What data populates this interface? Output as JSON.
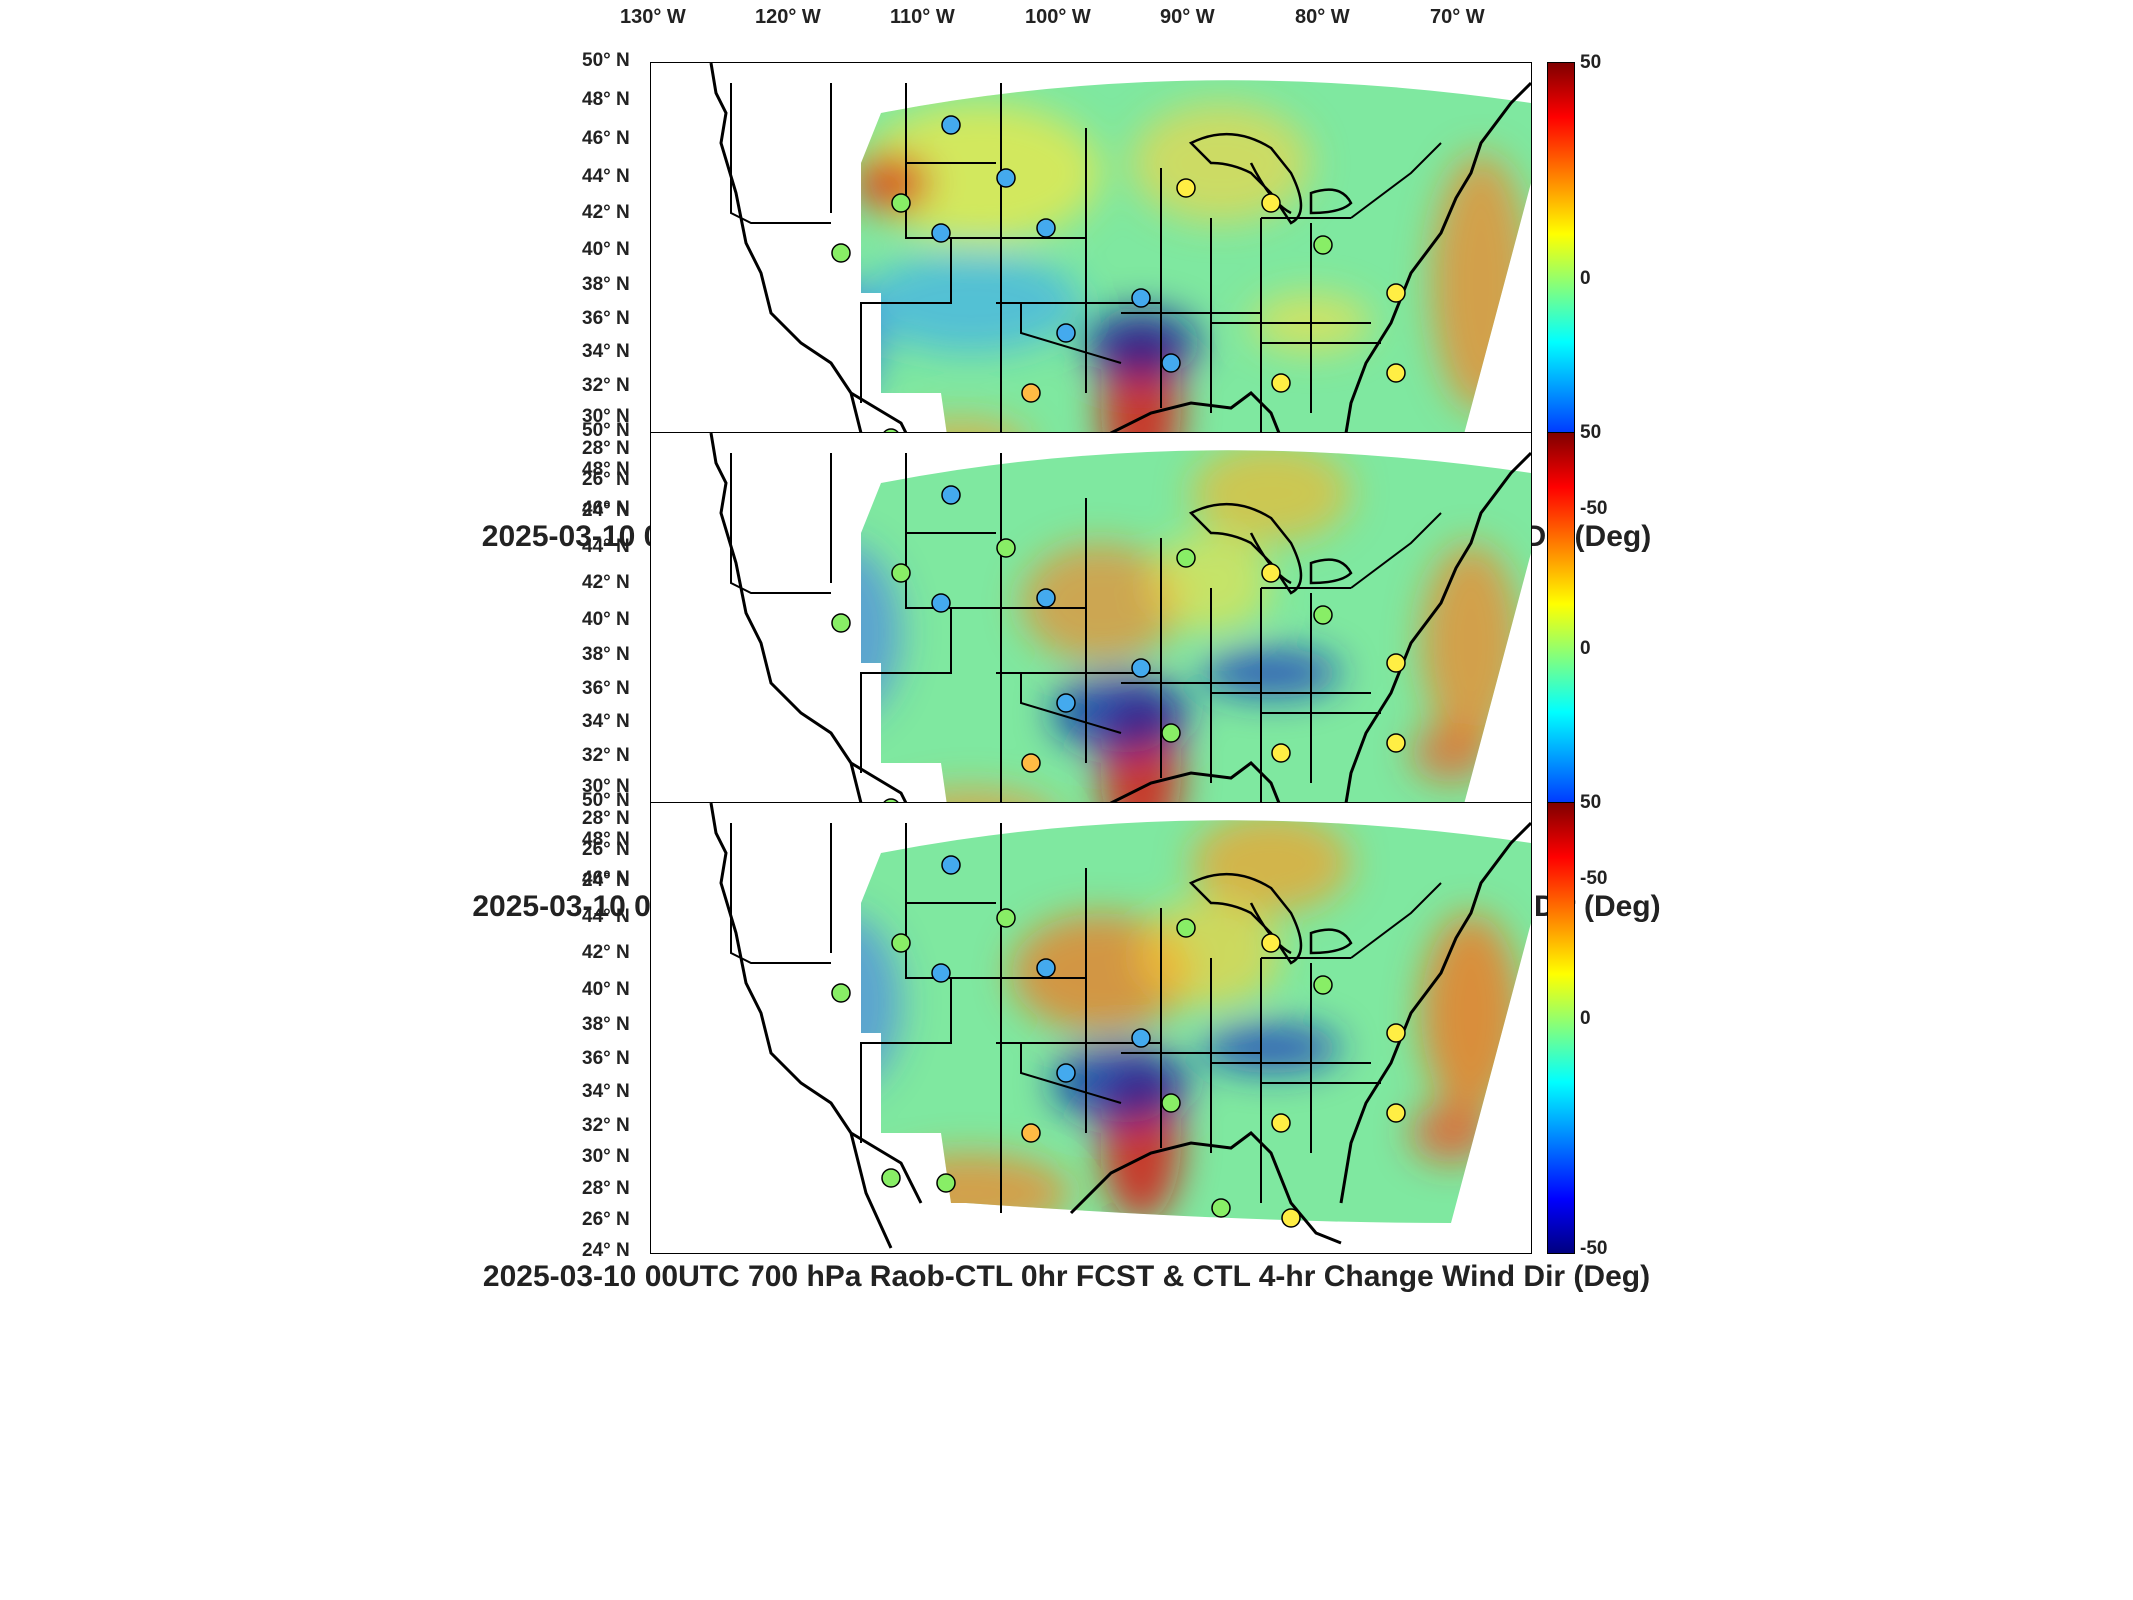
{
  "lon_labels": [
    "130° W",
    "120° W",
    "110° W",
    "100° W",
    "90° W",
    "80° W",
    "70° W"
  ],
  "lat_labels": [
    "50° N",
    "48° N",
    "46° N",
    "44° N",
    "42° N",
    "40° N",
    "38° N",
    "36° N",
    "34° N",
    "32° N",
    "30° N",
    "28° N",
    "26° N",
    "24° N"
  ],
  "colorbar": {
    "max": "50",
    "mid": "0",
    "min": "-50",
    "colors": [
      "#800000",
      "#ff0000",
      "#ff8000",
      "#ffff00",
      "#80ff80",
      "#00ffff",
      "#0080ff",
      "#0000ff",
      "#000080"
    ]
  },
  "panels": [
    {
      "title": "2025-03-10 00UTC 700 hPa Raob-CTL 0hr FCST & RTV 4-hr Change Wind Dir (Deg)"
    },
    {
      "title": "2025-03-10 00UTC 700 hPa Raob-WRF 0hr FCST & WRF 4-hr Change Wind Dir (Deg)"
    },
    {
      "title": "2025-03-10 00UTC 700 hPa Raob-CTL 0hr FCST & CTL 4-hr Change Wind Dir (Deg)"
    }
  ]
}
